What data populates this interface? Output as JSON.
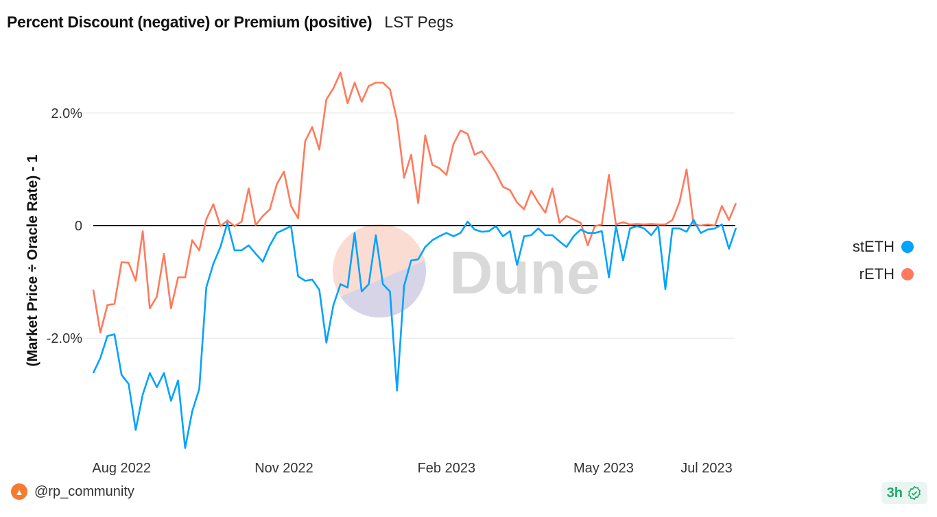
{
  "header": {
    "title": "Percent Discount (negative) or Premium (positive)",
    "subtitle": "LST Pegs"
  },
  "footer": {
    "author": "@rp_community",
    "avatar_icon": "rocket-icon",
    "refresh_badge": "3h",
    "badge_icon": "verified-check-icon"
  },
  "watermark": {
    "text": "Dune"
  },
  "chart_data": {
    "type": "line",
    "title": "Percent Discount (negative) or Premium (positive)",
    "xlabel": "",
    "ylabel": "(Market Price ÷ Oracle Rate) - 1",
    "x_start": "2022-07-16",
    "x_step_days": 4,
    "x_range_days": [
      0,
      364
    ],
    "x_ticks": [
      {
        "label": "Aug 2022",
        "day": 16
      },
      {
        "label": "Nov 2022",
        "day": 108
      },
      {
        "label": "Feb 2023",
        "day": 200
      },
      {
        "label": "May 2023",
        "day": 289
      },
      {
        "label": "Jul 2023",
        "day": 350
      }
    ],
    "y_unit": "%",
    "ylim": [
      -3.97,
      2.85
    ],
    "y_ticks": [
      {
        "label": "2.0%",
        "value": 2
      },
      {
        "label": "0",
        "value": 0
      },
      {
        "label": "-2.0%",
        "value": -2
      }
    ],
    "grid": true,
    "legend_position": "right",
    "series": [
      {
        "name": "stETH",
        "color": "#00a3ff",
        "values": [
          -2.62,
          -2.35,
          -1.96,
          -1.93,
          -2.65,
          -2.81,
          -3.63,
          -3.0,
          -2.62,
          -2.87,
          -2.62,
          -3.11,
          -2.75,
          -3.95,
          -3.3,
          -2.9,
          -1.1,
          -0.68,
          -0.38,
          0.05,
          -0.44,
          -0.44,
          -0.35,
          -0.5,
          -0.64,
          -0.35,
          -0.13,
          -0.07,
          -0.01,
          -0.9,
          -0.98,
          -0.96,
          -1.14,
          -2.08,
          -1.41,
          -1.04,
          -1.1,
          -0.13,
          -1.17,
          -1.04,
          -0.17,
          -1.04,
          -1.17,
          -2.93,
          -1.07,
          -0.62,
          -0.6,
          -0.38,
          -0.26,
          -0.19,
          -0.13,
          -0.19,
          -0.13,
          0.07,
          -0.07,
          -0.11,
          -0.1,
          -0.01,
          -0.19,
          -0.1,
          -0.7,
          -0.19,
          -0.17,
          -0.05,
          -0.17,
          -0.17,
          -0.28,
          -0.38,
          -0.19,
          -0.07,
          -0.13,
          -0.13,
          -0.1,
          -0.92,
          -0.01,
          -0.62,
          -0.05,
          -0.01,
          -0.05,
          -0.17,
          -0.01,
          -1.13,
          -0.05,
          -0.05,
          -0.11,
          0.1,
          -0.13,
          -0.07,
          -0.05,
          0.02,
          -0.41,
          -0.04
        ]
      },
      {
        "name": "rETH",
        "color": "#ff7a5c",
        "values": [
          -1.14,
          -1.9,
          -1.41,
          -1.39,
          -0.65,
          -0.66,
          -0.98,
          -0.1,
          -1.47,
          -1.26,
          -0.5,
          -1.47,
          -0.92,
          -0.92,
          -0.26,
          -0.44,
          0.11,
          0.38,
          -0.01,
          0.09,
          -0.01,
          0.07,
          0.66,
          0.01,
          0.17,
          0.29,
          0.74,
          0.96,
          0.35,
          0.13,
          1.5,
          1.75,
          1.35,
          2.24,
          2.44,
          2.72,
          2.17,
          2.54,
          2.2,
          2.48,
          2.54,
          2.54,
          2.42,
          1.87,
          0.85,
          1.26,
          0.4,
          1.6,
          1.08,
          1.02,
          0.9,
          1.45,
          1.69,
          1.63,
          1.26,
          1.32,
          1.14,
          0.94,
          0.69,
          0.63,
          0.41,
          0.29,
          0.62,
          0.41,
          0.23,
          0.66,
          0.05,
          0.17,
          0.11,
          0.05,
          -0.35,
          -0.01,
          0.02,
          0.9,
          0.02,
          0.06,
          0.02,
          0.03,
          0.02,
          0.03,
          0.02,
          0.02,
          0.1,
          0.42,
          1.0,
          0.02,
          0.0,
          0.02,
          0.0,
          0.35,
          0.1,
          0.4
        ]
      }
    ]
  }
}
